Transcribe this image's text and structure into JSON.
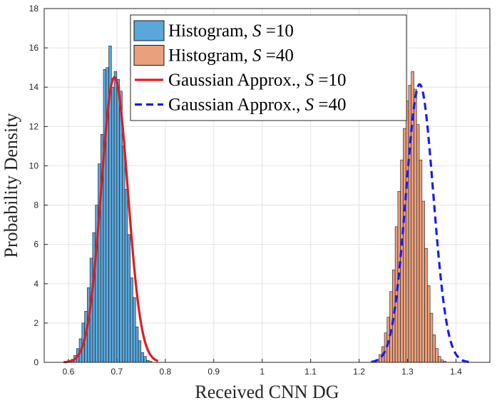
{
  "chart_data": {
    "type": "bar",
    "xlabel": "Received CNN DG",
    "ylabel": "Probability Density",
    "xlim": [
      0.55,
      1.47
    ],
    "ylim": [
      0,
      18
    ],
    "xticks": [
      "0.6",
      "0.7",
      "0.8",
      "0.9",
      "1",
      "1.1",
      "1.2",
      "1.3",
      "1.4"
    ],
    "xtick_values": [
      0.6,
      0.7,
      0.8,
      0.9,
      1.0,
      1.1,
      1.2,
      1.3,
      1.4
    ],
    "yticks": [
      "0",
      "2",
      "4",
      "6",
      "8",
      "10",
      "12",
      "14",
      "16",
      "18"
    ],
    "ytick_values": [
      0,
      2,
      4,
      6,
      8,
      10,
      12,
      14,
      16,
      18
    ],
    "grid": true,
    "legend_position": "top-center",
    "legend": [
      {
        "prefix": "Histogram, ",
        "symbol": "S",
        "suffix": " =10"
      },
      {
        "prefix": "Histogram, ",
        "symbol": "S",
        "suffix": " =40"
      },
      {
        "prefix": "Gaussian Approx., ",
        "symbol": "S",
        "suffix": " =10"
      },
      {
        "prefix": "Gaussian Approx., ",
        "symbol": "S",
        "suffix": " =40"
      }
    ],
    "series": [
      {
        "kind": "histogram",
        "color": "#5aa7dc",
        "bin_edges_start": 0.6,
        "bin_width": 0.00555,
        "values": [
          0.05,
          0.15,
          0.35,
          0.7,
          1.2,
          2.0,
          2.6,
          3.8,
          5.3,
          6.6,
          8.0,
          10.1,
          11.6,
          14.9,
          15.0,
          16.1,
          14.0,
          14.8,
          14.4,
          13.8,
          11.0,
          8.8,
          6.5,
          4.3,
          3.3,
          1.8,
          1.1,
          0.5,
          0.3,
          0.1,
          0.05
        ]
      },
      {
        "kind": "histogram",
        "color": "#e9a07d",
        "bin_edges_start": 1.23,
        "bin_width": 0.00555,
        "values": [
          0.05,
          0.15,
          0.4,
          0.8,
          1.5,
          2.3,
          3.6,
          4.7,
          6.9,
          8.7,
          10.3,
          11.9,
          13.3,
          14.1,
          14.8,
          13.9,
          12.1,
          10.3,
          8.2,
          5.8,
          3.9,
          2.5,
          1.4,
          0.7,
          0.3,
          0.12,
          0.05
        ]
      },
      {
        "kind": "line",
        "color": "#e31a1c",
        "style": "solid",
        "mean": 0.695,
        "std": 0.0275,
        "x_range": [
          0.59,
          0.785
        ]
      },
      {
        "kind": "line",
        "color": "#1a1aff",
        "style": "dashed",
        "mean": 1.325,
        "std": 0.0282,
        "x_range": [
          1.225,
          1.43
        ]
      }
    ]
  }
}
